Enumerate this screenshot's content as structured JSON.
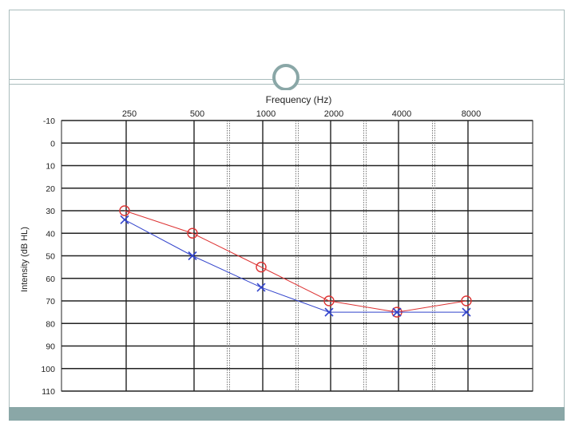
{
  "slide": {
    "accent_color": "#8aa7a7",
    "border_color": "#a9bcbc"
  },
  "chart_data": {
    "type": "line",
    "title": "Frequency (Hz)",
    "xlabel": "Frequency (Hz)",
    "ylabel": "Intensity (dB HL)",
    "categories": [
      "250",
      "500",
      "1000",
      "2000",
      "4000",
      "8000"
    ],
    "ylim": [
      -10,
      110
    ],
    "y_reversed": true,
    "y_ticks": [
      "-10",
      "0",
      "10",
      "20",
      "30",
      "40",
      "50",
      "60",
      "70",
      "80",
      "90",
      "100",
      "110"
    ],
    "grid": true,
    "series": [
      {
        "marker": "circle",
        "color": "#dd3333",
        "values": [
          30,
          40,
          55,
          70,
          75,
          70
        ]
      },
      {
        "marker": "x",
        "color": "#3344cc",
        "values": [
          34,
          50,
          64,
          75,
          75,
          75
        ]
      }
    ]
  }
}
